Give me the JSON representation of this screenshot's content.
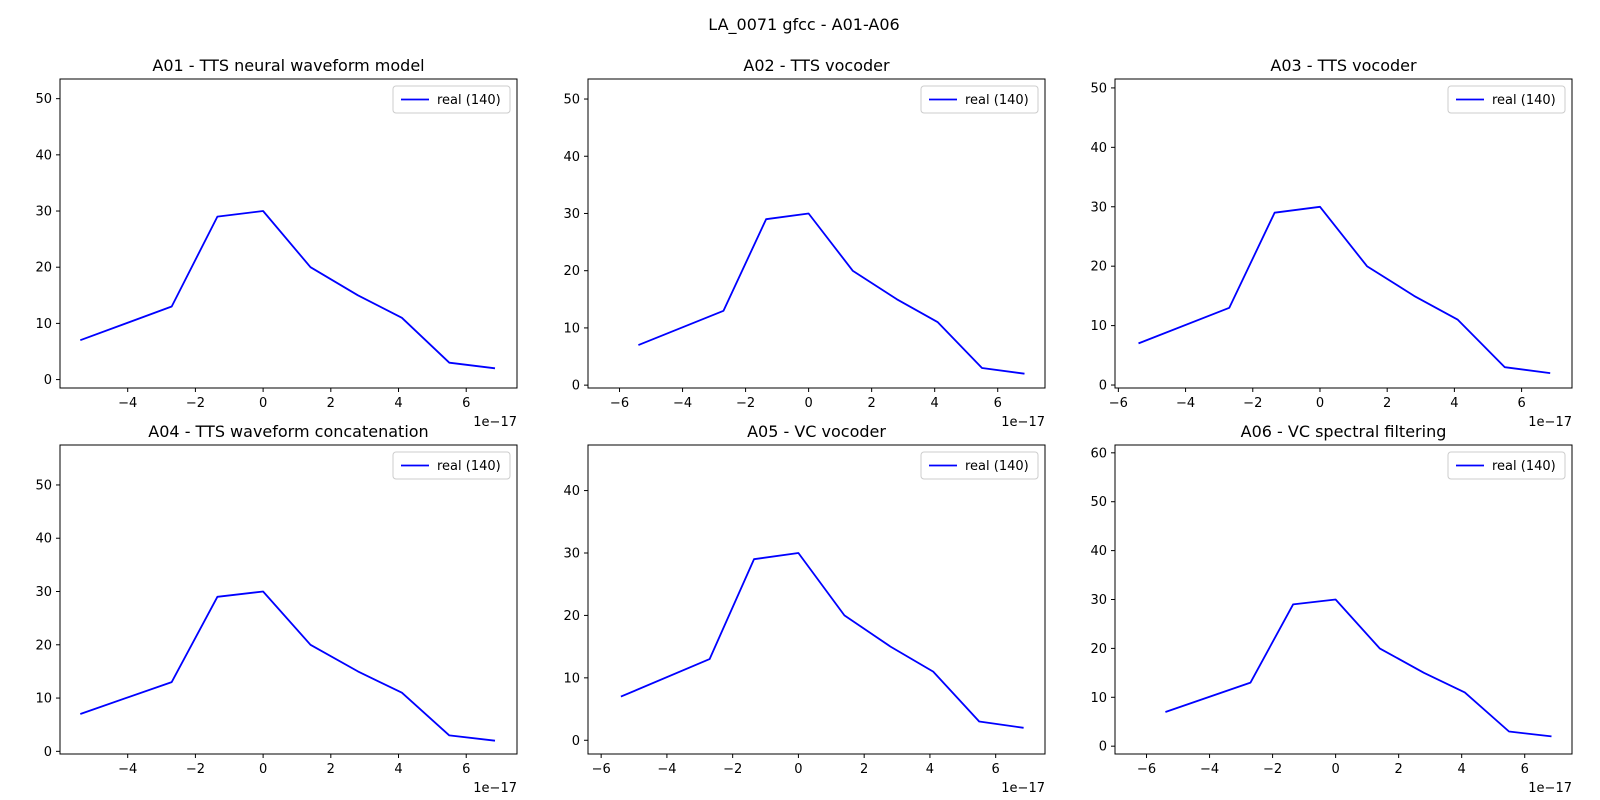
{
  "figure": {
    "suptitle": "LA_0071 gfcc - A01-A06",
    "offset_label": "1e−17"
  },
  "colors": {
    "series": "#0000ff",
    "axes": "#000000",
    "legend_border": "#cccccc"
  },
  "chart_data": [
    {
      "type": "line",
      "title": "A01 - TTS neural waveform model",
      "xlabel": "",
      "ylabel": "",
      "x_scale_label": "1e−17",
      "xlim": [
        -6.0,
        7.5
      ],
      "ylim": [
        -1.5,
        53.5
      ],
      "xticks": [
        -4,
        -2,
        0,
        2,
        4,
        6
      ],
      "xtick_labels": [
        "−4",
        "−2",
        "0",
        "2",
        "4",
        "6"
      ],
      "yticks": [
        0,
        10,
        20,
        30,
        40,
        50
      ],
      "ytick_labels": [
        "0",
        "10",
        "20",
        "30",
        "40",
        "50"
      ],
      "legend": "upper-right",
      "grid": false,
      "series": [
        {
          "name": "real (140)",
          "x": [
            -5.4,
            -2.7,
            -1.35,
            0,
            1.4,
            2.8,
            4.1,
            5.5,
            6.85
          ],
          "y": [
            7,
            13,
            29,
            30,
            20,
            15,
            11,
            3,
            2
          ]
        }
      ]
    },
    {
      "type": "line",
      "title": "A02 - TTS vocoder",
      "xlabel": "",
      "ylabel": "",
      "x_scale_label": "1e−17",
      "xlim": [
        -7.0,
        7.5
      ],
      "ylim": [
        -0.5,
        53.5
      ],
      "xticks": [
        -6,
        -4,
        -2,
        0,
        2,
        4,
        6
      ],
      "xtick_labels": [
        "−6",
        "−4",
        "−2",
        "0",
        "2",
        "4",
        "6"
      ],
      "yticks": [
        0,
        10,
        20,
        30,
        40,
        50
      ],
      "ytick_labels": [
        "0",
        "10",
        "20",
        "30",
        "40",
        "50"
      ],
      "legend": "upper-right",
      "grid": false,
      "series": [
        {
          "name": "real (140)",
          "x": [
            -5.4,
            -2.7,
            -1.35,
            0,
            1.4,
            2.8,
            4.1,
            5.5,
            6.85
          ],
          "y": [
            7,
            13,
            29,
            30,
            20,
            15,
            11,
            3,
            2
          ]
        }
      ]
    },
    {
      "type": "line",
      "title": "A03 - TTS vocoder",
      "xlabel": "",
      "ylabel": "",
      "x_scale_label": "1e−17",
      "xlim": [
        -6.1,
        7.5
      ],
      "ylim": [
        -0.5,
        51.5
      ],
      "xticks": [
        -6,
        -4,
        -2,
        0,
        2,
        4,
        6
      ],
      "xtick_labels": [
        "−6",
        "−4",
        "−2",
        "0",
        "2",
        "4",
        "6"
      ],
      "yticks": [
        0,
        10,
        20,
        30,
        40,
        50
      ],
      "ytick_labels": [
        "0",
        "10",
        "20",
        "30",
        "40",
        "50"
      ],
      "legend": "upper-right",
      "grid": false,
      "series": [
        {
          "name": "real (140)",
          "x": [
            -5.4,
            -2.7,
            -1.35,
            0,
            1.4,
            2.8,
            4.1,
            5.5,
            6.85
          ],
          "y": [
            7,
            13,
            29,
            30,
            20,
            15,
            11,
            3,
            2
          ]
        }
      ]
    },
    {
      "type": "line",
      "title": "A04 - TTS waveform concatenation",
      "xlabel": "",
      "ylabel": "",
      "x_scale_label": "1e−17",
      "xlim": [
        -6.0,
        7.5
      ],
      "ylim": [
        -0.5,
        57.5
      ],
      "xticks": [
        -4,
        -2,
        0,
        2,
        4,
        6
      ],
      "xtick_labels": [
        "−4",
        "−2",
        "0",
        "2",
        "4",
        "6"
      ],
      "yticks": [
        0,
        10,
        20,
        30,
        40,
        50
      ],
      "ytick_labels": [
        "0",
        "10",
        "20",
        "30",
        "40",
        "50"
      ],
      "legend": "upper-right",
      "grid": false,
      "series": [
        {
          "name": "real (140)",
          "x": [
            -5.4,
            -2.7,
            -1.35,
            0,
            1.4,
            2.8,
            4.1,
            5.5,
            6.85
          ],
          "y": [
            7,
            13,
            29,
            30,
            20,
            15,
            11,
            3,
            2
          ]
        }
      ]
    },
    {
      "type": "line",
      "title": "A05 - VC vocoder",
      "xlabel": "",
      "ylabel": "",
      "x_scale_label": "1e−17",
      "xlim": [
        -6.4,
        7.5
      ],
      "ylim": [
        -2.2,
        47.3
      ],
      "xticks": [
        -6,
        -4,
        -2,
        0,
        2,
        4,
        6
      ],
      "xtick_labels": [
        "−6",
        "−4",
        "−2",
        "0",
        "2",
        "4",
        "6"
      ],
      "yticks": [
        0,
        10,
        20,
        30,
        40
      ],
      "ytick_labels": [
        "0",
        "10",
        "20",
        "30",
        "40"
      ],
      "legend": "upper-right",
      "grid": false,
      "series": [
        {
          "name": "real (140)",
          "x": [
            -5.4,
            -2.7,
            -1.35,
            0,
            1.4,
            2.8,
            4.1,
            5.5,
            6.85
          ],
          "y": [
            7,
            13,
            29,
            30,
            20,
            15,
            11,
            3,
            2
          ]
        }
      ]
    },
    {
      "type": "line",
      "title": "A06 - VC spectral filtering",
      "xlabel": "",
      "ylabel": "",
      "x_scale_label": "1e−17",
      "xlim": [
        -7.0,
        7.5
      ],
      "ylim": [
        -1.6,
        61.6
      ],
      "xticks": [
        -6,
        -4,
        -2,
        0,
        2,
        4,
        6
      ],
      "xtick_labels": [
        "−6",
        "−4",
        "−2",
        "0",
        "2",
        "4",
        "6"
      ],
      "yticks": [
        0,
        10,
        20,
        30,
        40,
        50,
        60
      ],
      "ytick_labels": [
        "0",
        "10",
        "20",
        "30",
        "40",
        "50",
        "60"
      ],
      "legend": "upper-right",
      "grid": false,
      "series": [
        {
          "name": "real (140)",
          "x": [
            -5.4,
            -2.7,
            -1.35,
            0,
            1.4,
            2.8,
            4.1,
            5.5,
            6.85
          ],
          "y": [
            7,
            13,
            29,
            30,
            20,
            15,
            11,
            3,
            2
          ]
        }
      ]
    }
  ]
}
